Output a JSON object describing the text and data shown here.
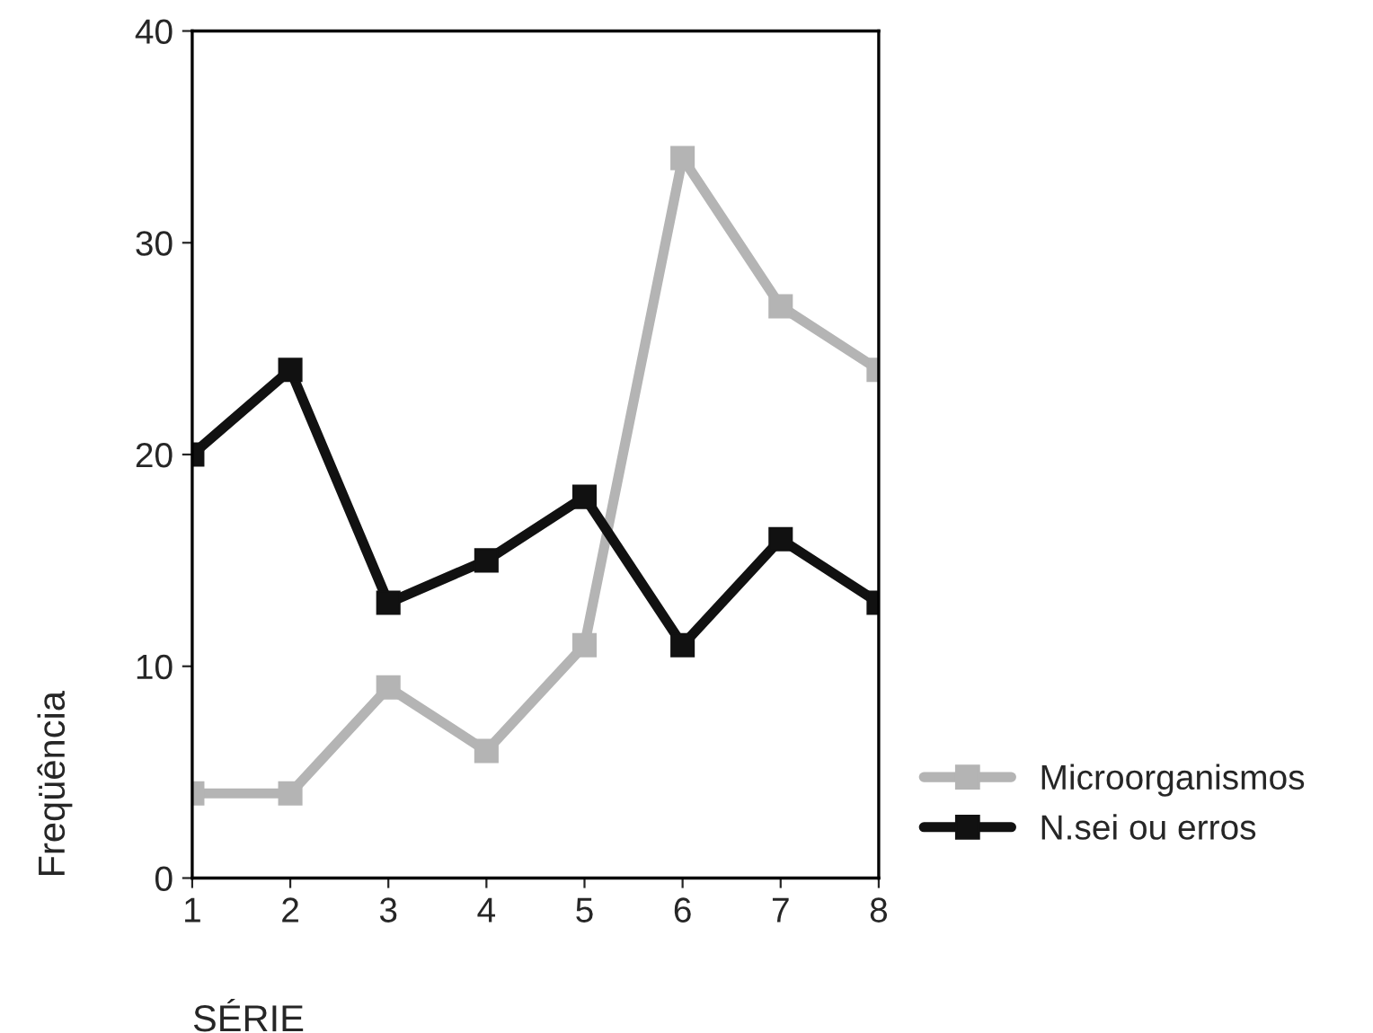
{
  "chart_data": {
    "type": "line",
    "xlabel": "SÉRIE",
    "ylabel": "Freqüência",
    "x": [
      1,
      2,
      3,
      4,
      5,
      6,
      7,
      8
    ],
    "xlim": [
      1,
      8
    ],
    "xticks": [
      1,
      2,
      3,
      4,
      5,
      6,
      7,
      8
    ],
    "ylim": [
      0,
      40
    ],
    "yticks": [
      0,
      10,
      20,
      30,
      40
    ],
    "marker": "square",
    "line_style": "solid",
    "grid": false,
    "legend": "bottom right",
    "series": [
      {
        "name": "Microorganismos",
        "color": "#b4b4b4",
        "values": [
          4,
          4,
          9,
          6,
          11,
          34,
          27,
          24
        ]
      },
      {
        "name": "N.sei ou erros",
        "color": "#111111",
        "values": [
          20,
          24,
          13,
          15,
          18,
          11,
          16,
          13
        ]
      }
    ]
  }
}
